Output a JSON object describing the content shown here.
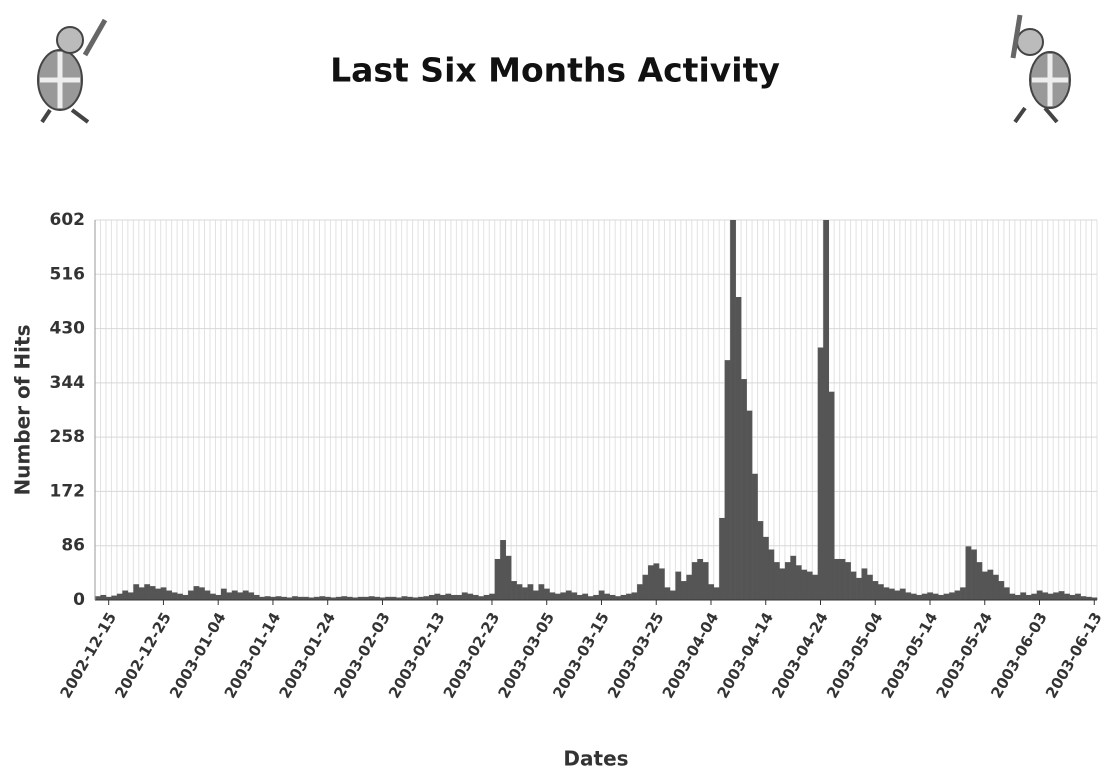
{
  "chart_data": {
    "type": "bar",
    "title": "Last Six Months Activity",
    "x_label": "Dates",
    "y_label": "Number of Hits",
    "color": "#555555",
    "grid": true,
    "categories": [
      null,
      null,
      "2002-12-15",
      null,
      null,
      null,
      null,
      null,
      null,
      null,
      null,
      null,
      "2002-12-25",
      null,
      null,
      null,
      null,
      null,
      null,
      null,
      null,
      null,
      "2003-01-04",
      null,
      null,
      null,
      null,
      null,
      null,
      null,
      null,
      null,
      "2003-01-14",
      null,
      null,
      null,
      null,
      null,
      null,
      null,
      null,
      null,
      "2003-01-24",
      null,
      null,
      null,
      null,
      null,
      null,
      null,
      null,
      null,
      "2003-02-03",
      null,
      null,
      null,
      null,
      null,
      null,
      null,
      null,
      null,
      "2003-02-13",
      null,
      null,
      null,
      null,
      null,
      null,
      null,
      null,
      null,
      "2003-02-23",
      null,
      null,
      null,
      null,
      null,
      null,
      null,
      null,
      null,
      "2003-03-05",
      null,
      null,
      null,
      null,
      null,
      null,
      null,
      null,
      null,
      "2003-03-15",
      null,
      null,
      null,
      null,
      null,
      null,
      null,
      null,
      null,
      "2003-03-25",
      null,
      null,
      null,
      null,
      null,
      null,
      null,
      null,
      null,
      "2003-04-04",
      null,
      null,
      null,
      null,
      null,
      null,
      null,
      null,
      null,
      "2003-04-14",
      null,
      null,
      null,
      null,
      null,
      null,
      null,
      null,
      null,
      "2003-04-24",
      null,
      null,
      null,
      null,
      null,
      null,
      null,
      null,
      null,
      "2003-05-04",
      null,
      null,
      null,
      null,
      null,
      null,
      null,
      null,
      null,
      "2003-05-14",
      null,
      null,
      null,
      null,
      null,
      null,
      null,
      null,
      null,
      "2003-05-24",
      null,
      null,
      null,
      null,
      null,
      null,
      null,
      null,
      null,
      "2003-06-03",
      null,
      null,
      null,
      null,
      null,
      null,
      null,
      null,
      null,
      "2003-06-13"
    ],
    "values": [
      6,
      8,
      5,
      7,
      10,
      15,
      12,
      25,
      20,
      25,
      22,
      18,
      20,
      15,
      12,
      10,
      8,
      15,
      22,
      20,
      15,
      10,
      8,
      18,
      12,
      15,
      12,
      15,
      12,
      8,
      5,
      6,
      5,
      6,
      5,
      4,
      6,
      5,
      5,
      4,
      5,
      6,
      5,
      4,
      5,
      6,
      5,
      4,
      5,
      5,
      6,
      5,
      4,
      5,
      5,
      4,
      6,
      5,
      4,
      5,
      6,
      8,
      10,
      8,
      10,
      8,
      8,
      12,
      10,
      8,
      6,
      8,
      10,
      65,
      95,
      70,
      30,
      25,
      20,
      25,
      15,
      25,
      18,
      12,
      10,
      12,
      15,
      12,
      8,
      10,
      6,
      8,
      15,
      10,
      8,
      6,
      8,
      10,
      12,
      25,
      40,
      55,
      58,
      50,
      20,
      15,
      45,
      30,
      40,
      60,
      65,
      60,
      25,
      20,
      130,
      380,
      602,
      480,
      350,
      300,
      200,
      125,
      100,
      80,
      60,
      50,
      60,
      70,
      55,
      48,
      45,
      40,
      400,
      602,
      330,
      65,
      65,
      60,
      45,
      35,
      50,
      40,
      30,
      25,
      20,
      18,
      15,
      18,
      12,
      10,
      8,
      10,
      12,
      10,
      8,
      10,
      12,
      15,
      20,
      85,
      80,
      60,
      45,
      48,
      40,
      30,
      20,
      10,
      8,
      12,
      8,
      10,
      15,
      12,
      10,
      12,
      14,
      10,
      8,
      10,
      6,
      5,
      4
    ],
    "ylim": [
      0,
      602
    ],
    "yticks": [
      0,
      86,
      172,
      258,
      344,
      430,
      516,
      602
    ]
  }
}
